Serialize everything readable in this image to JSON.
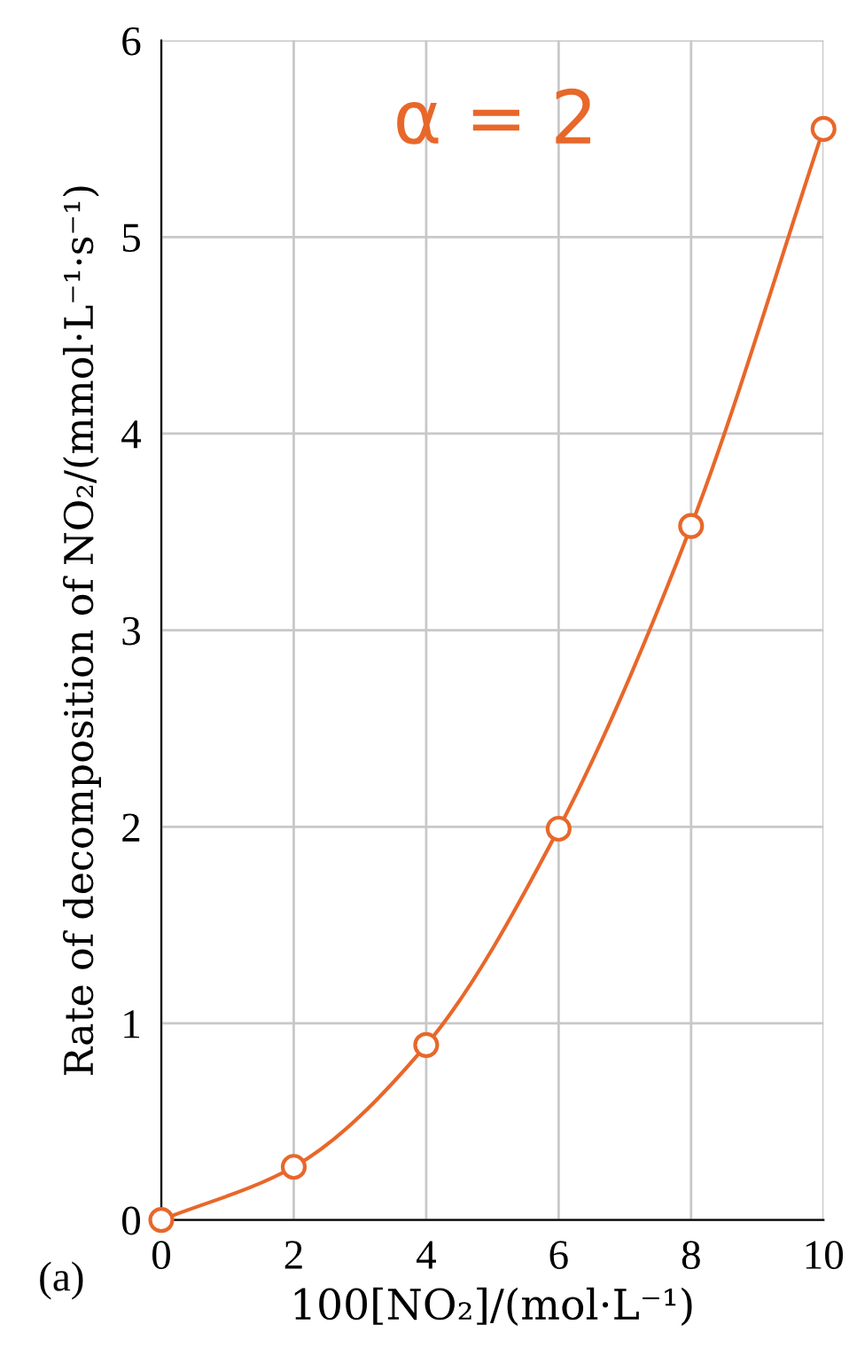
{
  "chart_data": {
    "type": "line",
    "xlabel": "100[NO₂]/(mol·L⁻¹)",
    "ylabel": "Rate of decomposition of NO₂/(mmol·L⁻¹·s⁻¹)",
    "x": [
      0,
      2,
      4,
      6,
      8,
      10
    ],
    "series": [
      {
        "color": "#e8672a",
        "values": [
          0,
          0.27,
          0.89,
          1.99,
          3.53,
          5.55
        ]
      }
    ],
    "xlim": [
      0,
      10
    ],
    "ylim": [
      0,
      6
    ],
    "xticks": [
      0,
      2,
      4,
      6,
      8,
      10
    ],
    "yticks": [
      0,
      1,
      2,
      3,
      4,
      5,
      6
    ],
    "grid": true,
    "marker": "circle",
    "line_style": "solid",
    "annotations": [
      "α = 2",
      "(a)"
    ]
  }
}
